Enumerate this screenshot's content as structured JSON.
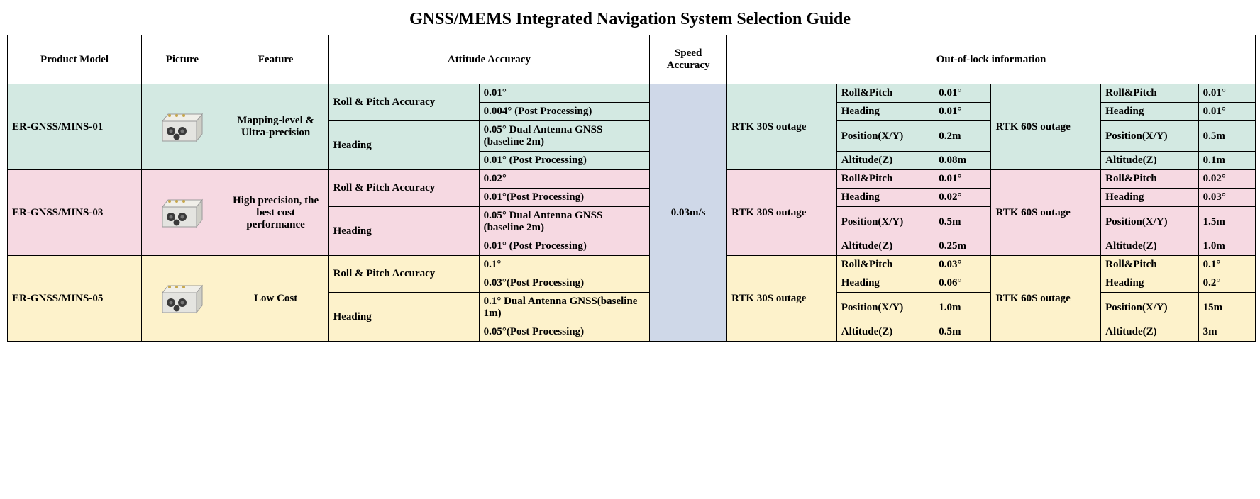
{
  "title": "GNSS/MEMS Integrated Navigation System Selection Guide",
  "headers": {
    "model": "Product Model",
    "picture": "Picture",
    "feature": "Feature",
    "attitude": "Attitude Accuracy",
    "speed": "Speed Accuracy",
    "outoflock": "Out-of-lock information"
  },
  "speed_accuracy": "0.03m/s",
  "colors": {
    "row0": "#d3e9e2",
    "row1": "#f6d9e2",
    "row2": "#fdf2cb",
    "speed_bg": "#cfd8e8",
    "header_bg": "#ffffff",
    "border": "#000000",
    "device_body": "#e4e4e0",
    "device_top": "#f0efe9",
    "device_side": "#cfcfc7",
    "connector_gold": "#c8a84c",
    "connector_dark": "#3a3a3a"
  },
  "products": [
    {
      "model": "ER-GNSS/MINS-01",
      "feature": "Mapping-level & Ultra-precision",
      "attitude": {
        "roll_pitch_label": "Roll & Pitch Accuracy",
        "roll_pitch_vals": [
          "0.01°",
          "0.004° (Post Processing)"
        ],
        "heading_label": "Heading",
        "heading_vals": [
          "0.05° Dual Antenna GNSS (baseline 2m)",
          "0.01° (Post Processing)"
        ]
      },
      "rtk30_label": "RTK 30S outage",
      "rtk60_label": "RTK 60S outage",
      "rtk30": [
        {
          "param": "Roll&Pitch",
          "val": "0.01°"
        },
        {
          "param": "Heading",
          "val": "0.01°"
        },
        {
          "param": "Position(X/Y)",
          "val": "0.2m"
        },
        {
          "param": "Altitude(Z)",
          "val": "0.08m"
        }
      ],
      "rtk60": [
        {
          "param": "Roll&Pitch",
          "val": "0.01°"
        },
        {
          "param": "Heading",
          "val": "0.01°"
        },
        {
          "param": "Position(X/Y)",
          "val": "0.5m"
        },
        {
          "param": "Altitude(Z)",
          "val": "0.1m"
        }
      ]
    },
    {
      "model": "ER-GNSS/MINS-03",
      "feature": "High precision, the best cost performance",
      "attitude": {
        "roll_pitch_label": "Roll & Pitch Accuracy",
        "roll_pitch_vals": [
          "0.02°",
          "0.01°(Post Processing)"
        ],
        "heading_label": "Heading",
        "heading_vals": [
          "0.05° Dual Antenna GNSS (baseline 2m)",
          "0.01° (Post Processing)"
        ]
      },
      "rtk30_label": "RTK 30S outage",
      "rtk60_label": "RTK 60S outage",
      "rtk30": [
        {
          "param": "Roll&Pitch",
          "val": "0.01°"
        },
        {
          "param": "Heading",
          "val": "0.02°"
        },
        {
          "param": "Position(X/Y)",
          "val": "0.5m"
        },
        {
          "param": "Altitude(Z)",
          "val": "0.25m"
        }
      ],
      "rtk60": [
        {
          "param": "Roll&Pitch",
          "val": "0.02°"
        },
        {
          "param": "Heading",
          "val": "0.03°"
        },
        {
          "param": "Position(X/Y)",
          "val": "1.5m"
        },
        {
          "param": "Altitude(Z)",
          "val": "1.0m"
        }
      ]
    },
    {
      "model": "ER-GNSS/MINS-05",
      "feature": "Low Cost",
      "attitude": {
        "roll_pitch_label": "Roll & Pitch Accuracy",
        "roll_pitch_vals": [
          "0.1°",
          "0.03°(Post Processing)"
        ],
        "heading_label": "Heading",
        "heading_vals": [
          "0.1° Dual Antenna GNSS(baseline 1m)",
          "0.05°(Post Processing)"
        ]
      },
      "rtk30_label": "RTK 30S outage",
      "rtk60_label": "RTK 60S outage",
      "rtk30": [
        {
          "param": "Roll&Pitch",
          "val": "0.03°"
        },
        {
          "param": "Heading",
          "val": "0.06°"
        },
        {
          "param": "Position(X/Y)",
          "val": "1.0m"
        },
        {
          "param": "Altitude(Z)",
          "val": "0.5m"
        }
      ],
      "rtk60": [
        {
          "param": "Roll&Pitch",
          "val": "0.1°"
        },
        {
          "param": "Heading",
          "val": "0.2°"
        },
        {
          "param": "Position(X/Y)",
          "val": "15m"
        },
        {
          "param": "Altitude(Z)",
          "val": "3m"
        }
      ]
    }
  ]
}
